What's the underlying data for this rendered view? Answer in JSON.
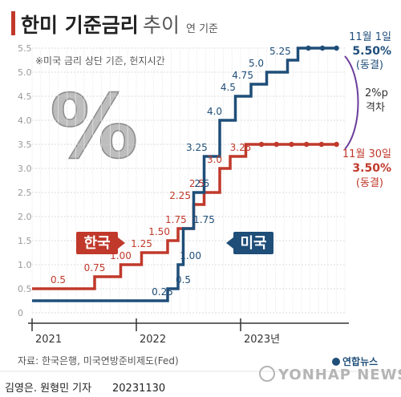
{
  "header": {
    "title_main": "한미 기준금리",
    "title_sub": "추이",
    "unit": "연 기준"
  },
  "note": "※미국 금리 상단 기준, 현지시간",
  "percent_glyph": "%",
  "tags": {
    "korea": "한국",
    "us": "미국"
  },
  "annotations": {
    "us_date": "11월 1일",
    "us_value": "5.50%",
    "us_status": "(동결)",
    "gap_value": "2%p",
    "gap_label": "격차",
    "kr_date": "11월 30일",
    "kr_value": "3.50%",
    "kr_status": "(동결)"
  },
  "footer": {
    "source": "자료: 한국은행, 미국연방준비제도(Fed)",
    "credit": "김영은. 원형민 기자",
    "date": "20231130",
    "brand": "연합뉴스",
    "watermark": "YONHAP NEWS"
  },
  "colors": {
    "korea": "#c0392b",
    "us": "#1f4e79",
    "grid": "#d0d0d0"
  },
  "chart_data": {
    "type": "line",
    "step": true,
    "ylim": [
      0,
      5.5
    ],
    "yticks": [
      "0",
      "0.5",
      "1.0",
      "1.5",
      "2.0",
      "2.5",
      "3.0",
      "3.5",
      "4.0",
      "4.5",
      "5.0",
      "5.5"
    ],
    "xticks": [
      "2021",
      "2022",
      "2023년"
    ],
    "x_range": [
      2021.0,
      2024.0
    ],
    "series": [
      {
        "name": "한국",
        "color": "#c0392b",
        "points": [
          {
            "x": 2021.0,
            "y": 0.5
          },
          {
            "x": 2021.6,
            "y": 0.75
          },
          {
            "x": 2021.85,
            "y": 1.0
          },
          {
            "x": 2022.05,
            "y": 1.25
          },
          {
            "x": 2022.3,
            "y": 1.5
          },
          {
            "x": 2022.4,
            "y": 1.75
          },
          {
            "x": 2022.55,
            "y": 2.25
          },
          {
            "x": 2022.65,
            "y": 2.5
          },
          {
            "x": 2022.8,
            "y": 3.0
          },
          {
            "x": 2022.9,
            "y": 3.25
          },
          {
            "x": 2023.05,
            "y": 3.5
          },
          {
            "x": 2023.92,
            "y": 3.5
          }
        ],
        "labels": [
          {
            "x": 2021.25,
            "y": 0.5,
            "text": "0.5"
          },
          {
            "x": 2021.6,
            "y": 0.75,
            "text": "0.75"
          },
          {
            "x": 2021.85,
            "y": 1.0,
            "text": "1.00"
          },
          {
            "x": 2022.05,
            "y": 1.25,
            "text": "1.25"
          },
          {
            "x": 2022.22,
            "y": 1.5,
            "text": "1.50"
          },
          {
            "x": 2022.38,
            "y": 1.75,
            "text": "1.75"
          },
          {
            "x": 2022.42,
            "y": 2.25,
            "text": "2.25"
          },
          {
            "x": 2022.58,
            "y": 2.5,
            "text": "2.5"
          },
          {
            "x": 2022.75,
            "y": 3.0,
            "text": "3.0"
          },
          {
            "x": 2023.0,
            "y": 3.25,
            "text": "3.25"
          }
        ],
        "dot_range": [
          2023.2,
          2023.92
        ],
        "dots": 6
      },
      {
        "name": "미국",
        "color": "#1f4e79",
        "points": [
          {
            "x": 2021.0,
            "y": 0.25
          },
          {
            "x": 2022.3,
            "y": 0.5
          },
          {
            "x": 2022.4,
            "y": 1.0
          },
          {
            "x": 2022.45,
            "y": 1.75
          },
          {
            "x": 2022.55,
            "y": 2.5
          },
          {
            "x": 2022.65,
            "y": 3.25
          },
          {
            "x": 2022.8,
            "y": 4.0
          },
          {
            "x": 2022.95,
            "y": 4.5
          },
          {
            "x": 2023.1,
            "y": 4.75
          },
          {
            "x": 2023.25,
            "y": 5.0
          },
          {
            "x": 2023.45,
            "y": 5.25
          },
          {
            "x": 2023.55,
            "y": 5.5
          },
          {
            "x": 2023.92,
            "y": 5.5
          }
        ],
        "labels": [
          {
            "x": 2022.25,
            "y": 0.25,
            "text": "0.25"
          },
          {
            "x": 2022.45,
            "y": 0.5,
            "text": "0.5"
          },
          {
            "x": 2022.52,
            "y": 1.0,
            "text": "1.00"
          },
          {
            "x": 2022.65,
            "y": 1.75,
            "text": "1.75"
          },
          {
            "x": 2022.63,
            "y": 2.5,
            "text": "2.5"
          },
          {
            "x": 2022.58,
            "y": 3.25,
            "text": "3.25"
          },
          {
            "x": 2022.75,
            "y": 4.0,
            "text": "4.0"
          },
          {
            "x": 2022.88,
            "y": 4.5,
            "text": "4.5"
          },
          {
            "x": 2023.02,
            "y": 4.75,
            "text": "4.75"
          },
          {
            "x": 2023.15,
            "y": 5.0,
            "text": "5.0"
          },
          {
            "x": 2023.38,
            "y": 5.25,
            "text": "5.25"
          }
        ],
        "dot_range": [
          2023.65,
          2023.92
        ],
        "dots": 3
      }
    ]
  }
}
